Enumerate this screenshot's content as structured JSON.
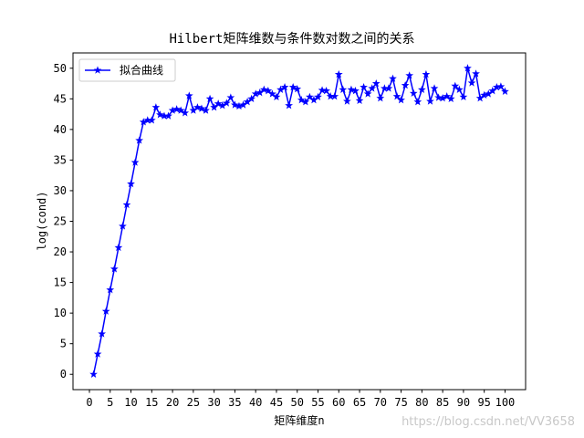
{
  "chart_data": {
    "type": "line",
    "title": "Hilbert矩阵维数与条件数对数之间的关系",
    "xlabel": "矩阵维度n",
    "ylabel": "log(cond)",
    "xlim": [
      -3.95,
      104.95
    ],
    "ylim": [
      -2.5,
      52.5
    ],
    "xticks": [
      0,
      5,
      10,
      15,
      20,
      25,
      30,
      35,
      40,
      45,
      50,
      55,
      60,
      65,
      70,
      75,
      80,
      85,
      90,
      95,
      100
    ],
    "yticks": [
      0,
      5,
      10,
      15,
      20,
      25,
      30,
      35,
      40,
      45,
      50
    ],
    "grid": false,
    "legend_position": "top-left",
    "series": [
      {
        "name": "拟合曲线",
        "color": "#0000ff",
        "marker": "star",
        "x": [
          1,
          2,
          3,
          4,
          5,
          6,
          7,
          8,
          9,
          10,
          11,
          12,
          13,
          14,
          15,
          16,
          17,
          18,
          19,
          20,
          21,
          22,
          23,
          24,
          25,
          26,
          27,
          28,
          29,
          30,
          31,
          32,
          33,
          34,
          35,
          36,
          37,
          38,
          39,
          40,
          41,
          42,
          43,
          44,
          45,
          46,
          47,
          48,
          49,
          50,
          51,
          52,
          53,
          54,
          55,
          56,
          57,
          58,
          59,
          60,
          61,
          62,
          63,
          64,
          65,
          66,
          67,
          68,
          69,
          70,
          71,
          72,
          73,
          74,
          75,
          76,
          77,
          78,
          79,
          80,
          81,
          82,
          83,
          84,
          85,
          86,
          87,
          88,
          89,
          90,
          91,
          92,
          93,
          94,
          95,
          96,
          97,
          98,
          99,
          100
        ],
        "y": [
          0,
          3.3,
          6.6,
          10.3,
          13.8,
          17.2,
          20.7,
          24.2,
          27.7,
          31.1,
          34.6,
          38.2,
          41.2,
          41.5,
          41.5,
          43.6,
          42.4,
          42.2,
          42.2,
          43.1,
          43.3,
          43.1,
          42.7,
          45.5,
          43.1,
          43.6,
          43.4,
          43.1,
          45.0,
          43.6,
          44.2,
          43.9,
          44.3,
          45.2,
          44.0,
          43.8,
          44.0,
          44.5,
          45.0,
          45.8,
          46.0,
          46.5,
          46.3,
          45.8,
          45.3,
          46.5,
          46.9,
          43.9,
          46.9,
          46.6,
          44.8,
          44.5,
          45.3,
          44.8,
          45.3,
          46.4,
          46.3,
          45.4,
          45.4,
          49.0,
          46.5,
          44.6,
          46.5,
          46.3,
          44.7,
          46.9,
          45.8,
          46.7,
          47.5,
          45.1,
          46.7,
          46.7,
          48.3,
          45.4,
          44.8,
          47.2,
          48.8,
          45.9,
          44.5,
          46.5,
          49.0,
          44.6,
          46.7,
          45.2,
          45.1,
          45.4,
          45.0,
          47.1,
          46.5,
          45.3,
          50.0,
          47.6,
          49.1,
          45.1,
          45.6,
          45.8,
          46.3,
          46.9,
          47.0,
          46.2
        ]
      }
    ]
  },
  "watermark": "https://blog.csdn.net/VV3658"
}
